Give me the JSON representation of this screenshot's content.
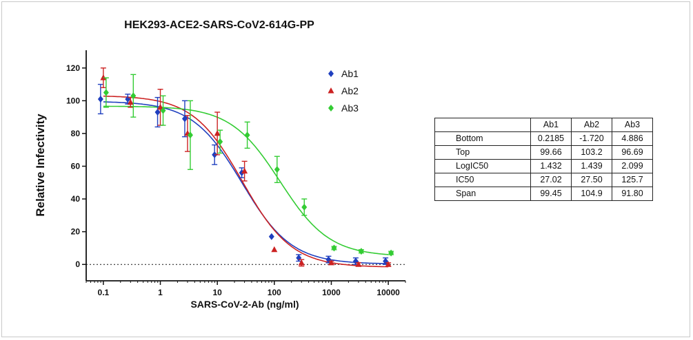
{
  "chart_data": {
    "type": "scatter",
    "title": "HEK293-ACE2-SARS-CoV2-614G-PP",
    "xlabel": "SARS-CoV-2-Ab (ng/ml)",
    "ylabel": "Relative Infectivity",
    "x_scale": "log",
    "xlim": [
      0.05,
      20000
    ],
    "ylim": [
      -10,
      130
    ],
    "x_ticks": [
      "0.1",
      "1",
      "10",
      "100",
      "1000",
      "10000"
    ],
    "y_ticks": [
      "0",
      "20",
      "40",
      "60",
      "80",
      "100",
      "120"
    ],
    "reference_line": {
      "y": 0,
      "style": "dotted"
    },
    "legend_position": "top-right",
    "x": [
      0.1,
      0.3,
      1,
      3,
      10,
      30,
      100,
      300,
      1000,
      3000,
      10000
    ],
    "series": [
      {
        "name": "Ab1",
        "color": "#1f3fbf",
        "marker": "diamond",
        "values": [
          101,
          101,
          93,
          89,
          67,
          56,
          17,
          4,
          3,
          2,
          2
        ],
        "errors": [
          9,
          3,
          9,
          11,
          6,
          3,
          0,
          2,
          2,
          2,
          2
        ],
        "fit": {
          "bottom": 0.2185,
          "top": 99.66,
          "logIC50": 1.432
        }
      },
      {
        "name": "Ab2",
        "color": "#cc2222",
        "marker": "triangle",
        "values": [
          114,
          99,
          96,
          80,
          80,
          57,
          9,
          1,
          1,
          0,
          0
        ],
        "errors": [
          6,
          3,
          11,
          11,
          13,
          6,
          0,
          2,
          1,
          1,
          1
        ],
        "fit": {
          "bottom": -1.72,
          "top": 103.2,
          "logIC50": 1.439
        }
      },
      {
        "name": "Ab3",
        "color": "#33cc33",
        "marker": "diamond",
        "values": [
          105,
          103,
          94,
          79,
          75,
          79,
          58,
          35,
          10,
          8,
          7
        ],
        "errors": [
          9,
          13,
          9,
          21,
          7,
          8,
          8,
          5,
          1,
          1,
          1
        ],
        "fit": {
          "bottom": 4.886,
          "top": 96.69,
          "logIC50": 2.099
        }
      }
    ]
  },
  "params_table": {
    "columns": [
      "Ab1",
      "Ab2",
      "Ab3"
    ],
    "rows": [
      {
        "label": "Bottom",
        "values": [
          "0.2185",
          "-1.720",
          "4.886"
        ]
      },
      {
        "label": "Top",
        "values": [
          "99.66",
          "103.2",
          "96.69"
        ]
      },
      {
        "label": "LogIC50",
        "values": [
          "1.432",
          "1.439",
          "2.099"
        ]
      },
      {
        "label": "IC50",
        "values": [
          "27.02",
          "27.50",
          "125.7"
        ]
      },
      {
        "label": "Span",
        "values": [
          "99.45",
          "104.9",
          "91.80"
        ]
      }
    ]
  }
}
